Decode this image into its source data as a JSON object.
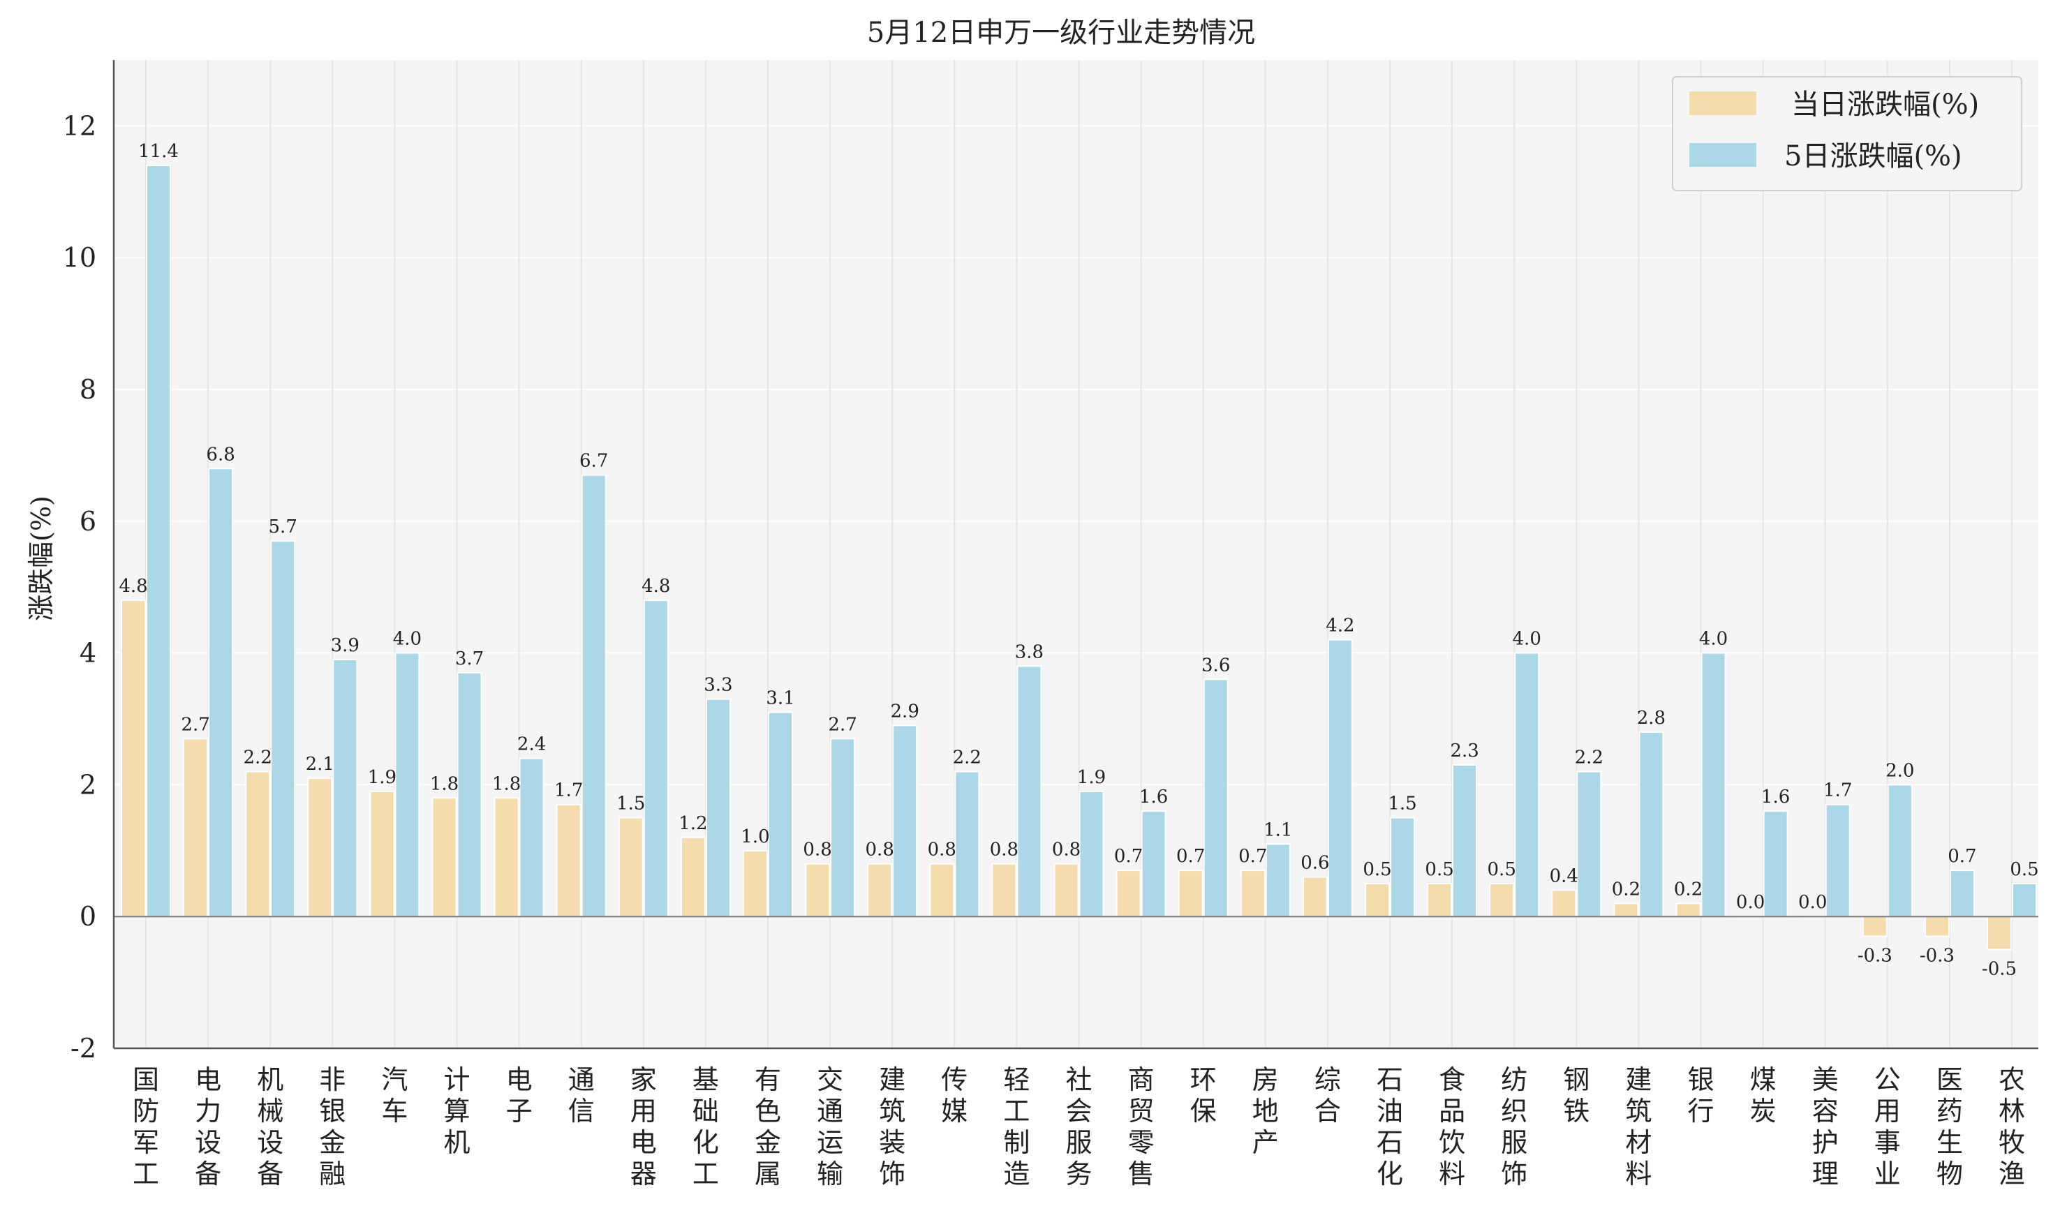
{
  "chart_data": {
    "type": "bar",
    "title": "5月12日申万一级行业走势情况",
    "xlabel": "",
    "ylabel": "涨跌幅(%)",
    "ylim": [
      -2,
      13
    ],
    "yticks": [
      -2,
      0,
      2,
      4,
      6,
      8,
      10,
      12
    ],
    "grid": true,
    "legend_position": "top-right",
    "categories": [
      "国防军工",
      "电力设备",
      "机械设备",
      "非银金融",
      "汽车",
      "计算机",
      "电子",
      "通信",
      "家用电器",
      "基础化工",
      "有色金属",
      "交通运输",
      "建筑装饰",
      "传媒",
      "轻工制造",
      "社会服务",
      "商贸零售",
      "环保",
      "房地产",
      "综合",
      "石油石化",
      "食品饮料",
      "纺织服饰",
      "钢铁",
      "建筑材料",
      "银行",
      "煤炭",
      "美容护理",
      "公用事业",
      "医药生物",
      "农林牧渔"
    ],
    "series": [
      {
        "name": "当日涨跌幅(%)",
        "color": "#f5dcae",
        "values": [
          4.8,
          2.7,
          2.2,
          2.1,
          1.9,
          1.8,
          1.8,
          1.7,
          1.5,
          1.2,
          1.0,
          0.8,
          0.8,
          0.8,
          0.8,
          0.8,
          0.7,
          0.7,
          0.7,
          0.6,
          0.5,
          0.5,
          0.5,
          0.4,
          0.2,
          0.2,
          0.0,
          0.0,
          -0.3,
          -0.3,
          -0.5
        ]
      },
      {
        "name": "5日涨跌幅(%)",
        "color": "#acd7e6",
        "values": [
          11.4,
          6.8,
          5.7,
          3.9,
          4.0,
          3.7,
          2.4,
          6.7,
          4.8,
          3.3,
          3.1,
          2.7,
          2.9,
          2.2,
          3.8,
          1.9,
          1.6,
          3.6,
          1.1,
          4.2,
          1.5,
          2.3,
          4.0,
          2.2,
          2.8,
          4.0,
          1.6,
          1.7,
          2.0,
          0.7,
          0.5
        ]
      }
    ]
  }
}
